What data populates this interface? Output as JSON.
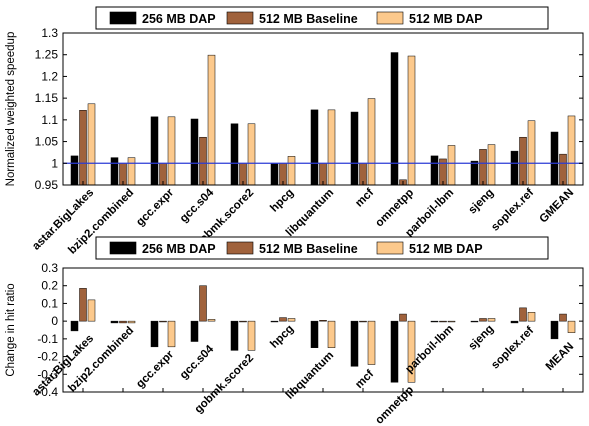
{
  "colors": {
    "series_256": "#000000",
    "series_512_baseline": "#a0623c",
    "series_512_dap": "#fcc98c",
    "reference_line": "#2b3bd6"
  },
  "chart_data": [
    {
      "type": "bar",
      "ylabel": "Normalized weighted speedup",
      "ylim": [
        0.95,
        1.3
      ],
      "yticks": [
        0.95,
        1,
        1.05,
        1.1,
        1.15,
        1.2,
        1.25,
        1.3
      ],
      "reference_line": 1.0,
      "grid": false,
      "legend": {
        "placement": "top",
        "entries": [
          "256 MB DAP",
          "512 MB Baseline",
          "512 MB DAP"
        ]
      },
      "categories": [
        "astar.BigLakes",
        "bzip2.combined",
        "gcc.expr",
        "gcc.s04",
        "gobmk.score2",
        "hpcg",
        "libquantum",
        "mcf",
        "omnetpp",
        "parboil-lbm",
        "sjeng",
        "soplex.ref",
        "GMEAN"
      ],
      "series": [
        {
          "name": "256 MB DAP",
          "values": [
            1.017,
            1.013,
            1.107,
            1.102,
            1.091,
            1.0,
            1.123,
            1.118,
            1.255,
            1.017,
            1.005,
            1.028,
            1.072
          ]
        },
        {
          "name": "512 MB Baseline",
          "values": [
            1.122,
            1.0,
            1.0,
            1.06,
            1.0,
            1.0,
            1.0,
            1.0,
            0.962,
            1.01,
            1.032,
            1.06,
            1.021
          ]
        },
        {
          "name": "512 MB DAP",
          "values": [
            1.137,
            1.013,
            1.107,
            1.249,
            1.091,
            1.016,
            1.123,
            1.149,
            1.247,
            1.041,
            1.043,
            1.098,
            1.109
          ]
        }
      ]
    },
    {
      "type": "bar",
      "ylabel": "Change in hit ratio",
      "ylim": [
        -0.4,
        0.3
      ],
      "yticks": [
        -0.4,
        -0.3,
        -0.2,
        -0.1,
        0,
        0.1,
        0.2,
        0.3
      ],
      "grid": false,
      "legend": {
        "placement": "top",
        "entries": [
          "256 MB DAP",
          "512 MB Baseline",
          "512 MB DAP"
        ]
      },
      "categories": [
        "astar.BigLakes",
        "bzip2.combined",
        "gcc.expr",
        "gcc.s04",
        "gobmk.score2",
        "hpcg",
        "libquantum",
        "mcf",
        "omnetpp",
        "parboil-lbm",
        "sjeng",
        "soplex.ref",
        "MEAN"
      ],
      "series": [
        {
          "name": "256 MB DAP",
          "values": [
            -0.055,
            -0.01,
            -0.145,
            -0.115,
            -0.165,
            0.0,
            -0.15,
            -0.255,
            -0.345,
            0.0,
            0.0,
            -0.01,
            -0.1
          ]
        },
        {
          "name": "512 MB Baseline",
          "values": [
            0.185,
            -0.01,
            0.0,
            0.2,
            0.0,
            0.02,
            0.005,
            0.0,
            0.04,
            0.0,
            0.015,
            0.075,
            0.04
          ]
        },
        {
          "name": "512 MB DAP",
          "values": [
            0.12,
            -0.01,
            -0.145,
            0.01,
            -0.165,
            0.015,
            -0.15,
            -0.245,
            -0.345,
            0.0,
            0.015,
            0.05,
            -0.065
          ]
        }
      ]
    }
  ]
}
